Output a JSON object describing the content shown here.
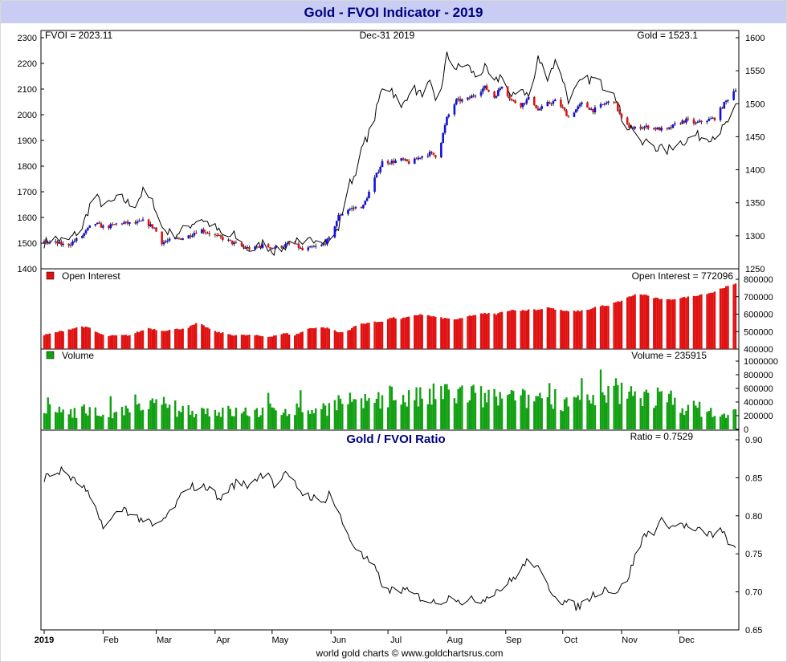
{
  "header": {
    "title": "Gold - FVOI Indicator - 2019"
  },
  "footer": {
    "credit": "world gold charts © www.goldchartsrus.com"
  },
  "colors": {
    "title_band": "#c9cdf3",
    "title_text": "#000080",
    "up_candle": "#1010e0",
    "down_candle": "#e01010",
    "open_interest": "#e01010",
    "volume": "#12a012",
    "line": "#000000"
  },
  "x_axis": {
    "ticks": [
      "2019",
      "Feb",
      "Mar",
      "Apr",
      "May",
      "Jun",
      "Jul",
      "Aug",
      "Sep",
      "Oct",
      "Nov",
      "Dec"
    ],
    "tick_day_index": [
      0,
      31,
      59,
      90,
      120,
      151,
      181,
      212,
      243,
      273,
      304,
      334
    ],
    "days_in_year": 365
  },
  "chart_data": [
    {
      "type": "line",
      "name": "price-panel",
      "labels": {
        "fvoi": "FVOI = 2023.11",
        "date": "Dec-31  2019",
        "gold": "Gold = 1523.1"
      },
      "left_axis": {
        "ticks": [
          "2300",
          "2200",
          "2100",
          "2000",
          "1900",
          "1800",
          "1700",
          "1600",
          "1500",
          "1400"
        ],
        "range": [
          1400,
          2300
        ]
      },
      "right_axis": {
        "ticks": [
          "1600",
          "1550",
          "1500",
          "1450",
          "1400",
          "1350",
          "1300",
          "1250"
        ],
        "range": [
          1250,
          1600
        ]
      },
      "fvoi_series": {
        "day": [
          0,
          5,
          12,
          20,
          26,
          32,
          40,
          47,
          52,
          58,
          62,
          68,
          75,
          82,
          90,
          95,
          100,
          106,
          110,
          115,
          121,
          126,
          131,
          136,
          141,
          146,
          150,
          155,
          160,
          163,
          168,
          173,
          178,
          183,
          188,
          193,
          198,
          203,
          207,
          212,
          217,
          222,
          227,
          232,
          237,
          241,
          246,
          251,
          256,
          260,
          265,
          270,
          276,
          283,
          289,
          295,
          300,
          305,
          310,
          314,
          318,
          323,
          328,
          333,
          338,
          343,
          348,
          353,
          358,
          364
        ],
        "value": [
          1500,
          1520,
          1505,
          1560,
          1690,
          1640,
          1680,
          1640,
          1700,
          1650,
          1560,
          1530,
          1560,
          1600,
          1560,
          1520,
          1530,
          1480,
          1470,
          1500,
          1470,
          1480,
          1520,
          1480,
          1520,
          1520,
          1500,
          1560,
          1720,
          1760,
          1880,
          1960,
          2110,
          2100,
          2020,
          2110,
          2080,
          2120,
          2020,
          2230,
          2180,
          2200,
          2150,
          2180,
          2120,
          2160,
          2060,
          2110,
          2060,
          2220,
          2150,
          2220,
          2060,
          2130,
          2140,
          2110,
          2100,
          1960,
          1950,
          1880,
          1900,
          1870,
          1860,
          1890,
          1900,
          1920,
          1910,
          1920,
          1950,
          2023.11
        ]
      },
      "gold_series": {
        "day": [
          0,
          5,
          12,
          20,
          26,
          32,
          40,
          47,
          52,
          58,
          62,
          68,
          75,
          82,
          90,
          95,
          100,
          106,
          110,
          115,
          121,
          126,
          131,
          136,
          141,
          146,
          150,
          155,
          160,
          163,
          168,
          173,
          178,
          183,
          188,
          193,
          198,
          203,
          207,
          212,
          217,
          222,
          227,
          232,
          237,
          241,
          246,
          251,
          256,
          260,
          265,
          270,
          276,
          283,
          289,
          295,
          300,
          305,
          310,
          314,
          318,
          323,
          328,
          333,
          338,
          343,
          348,
          353,
          358,
          364
        ],
        "value": [
          1290,
          1290,
          1285,
          1300,
          1320,
          1312,
          1320,
          1318,
          1322,
          1312,
          1290,
          1294,
          1298,
          1310,
          1300,
          1295,
          1288,
          1282,
          1280,
          1285,
          1282,
          1285,
          1290,
          1278,
          1282,
          1285,
          1295,
          1330,
          1340,
          1342,
          1345,
          1380,
          1412,
          1412,
          1415,
          1410,
          1420,
          1425,
          1420,
          1478,
          1505,
          1505,
          1515,
          1525,
          1510,
          1528,
          1505,
          1498,
          1510,
          1490,
          1500,
          1505,
          1480,
          1500,
          1490,
          1500,
          1505,
          1470,
          1462,
          1465,
          1465,
          1462,
          1460,
          1470,
          1475,
          1470,
          1475,
          1478,
          1500,
          1523.1
        ]
      }
    },
    {
      "type": "bar",
      "name": "open-interest-panel",
      "legend": "Open Interest",
      "label": "Open Interest = 772096",
      "axis": {
        "ticks": [
          "800000",
          "700000",
          "600000",
          "500000",
          "400000"
        ],
        "range": [
          400000,
          800000
        ]
      },
      "days": [
        0,
        20,
        24,
        27,
        32,
        45,
        55,
        62,
        75,
        81,
        90,
        95,
        100,
        110,
        118,
        122,
        127,
        132,
        140,
        145,
        150,
        155,
        159,
        165,
        170,
        175,
        178,
        183,
        188,
        193,
        198,
        203,
        208,
        212,
        218,
        224,
        229,
        234,
        238,
        243,
        248,
        253,
        256,
        260,
        265,
        270,
        276,
        283,
        288,
        292,
        297,
        300,
        305,
        308,
        312,
        317,
        320,
        323,
        327,
        333,
        340,
        347,
        352,
        357,
        364
      ],
      "values": [
        480000,
        530000,
        520000,
        500000,
        475000,
        480000,
        520000,
        505000,
        520000,
        550000,
        500000,
        490000,
        480000,
        480000,
        470000,
        480000,
        490000,
        480000,
        520000,
        525000,
        520000,
        495000,
        500000,
        540000,
        550000,
        555000,
        560000,
        580000,
        575000,
        585000,
        600000,
        590000,
        580000,
        575000,
        570000,
        590000,
        600000,
        605000,
        600000,
        620000,
        625000,
        620000,
        630000,
        625000,
        640000,
        625000,
        615000,
        620000,
        630000,
        650000,
        645000,
        665000,
        680000,
        700000,
        715000,
        710000,
        695000,
        690000,
        680000,
        690000,
        700000,
        715000,
        725000,
        750000,
        772096
      ]
    },
    {
      "type": "bar",
      "name": "volume-panel",
      "legend": "Volume",
      "label": "Volume = 235915",
      "axis": {
        "ticks": [
          "1000000",
          "800000",
          "600000",
          "400000",
          "200000",
          "0"
        ],
        "range": [
          0,
          1000000
        ]
      },
      "days": [
        0,
        20,
        30,
        40,
        50,
        60,
        70,
        80,
        90,
        100,
        110,
        120,
        130,
        140,
        150,
        155,
        160,
        170,
        180,
        190,
        200,
        210,
        220,
        230,
        240,
        250,
        260,
        270,
        280,
        290,
        300,
        310,
        320,
        330,
        340,
        350,
        357,
        364
      ],
      "values": [
        260000,
        280000,
        230000,
        240000,
        290000,
        360000,
        300000,
        280000,
        270000,
        250000,
        250000,
        280000,
        300000,
        280000,
        330000,
        400000,
        300000,
        380000,
        520000,
        450000,
        450000,
        520000,
        520000,
        470000,
        450000,
        420000,
        480000,
        450000,
        430000,
        380000,
        520000,
        520000,
        480000,
        420000,
        320000,
        270000,
        180000,
        235915
      ]
    },
    {
      "type": "line",
      "name": "ratio-panel",
      "title": "Gold / FVOI Ratio",
      "label": "Ratio = 0.7529",
      "axis": {
        "ticks": [
          "0.90",
          "0.85",
          "0.80",
          "0.75",
          "0.70",
          "0.65"
        ],
        "range": [
          0.65,
          0.9
        ]
      },
      "day": [
        0,
        5,
        10,
        16,
        20,
        25,
        28,
        32,
        37,
        42,
        47,
        52,
        58,
        63,
        68,
        72,
        76,
        82,
        87,
        92,
        97,
        102,
        107,
        112,
        118,
        122,
        126,
        131,
        136,
        141,
        146,
        150,
        154,
        158,
        162,
        168,
        173,
        177,
        181,
        186,
        191,
        196,
        201,
        206,
        211,
        216,
        221,
        226,
        231,
        236,
        241,
        246,
        251,
        256,
        261,
        266,
        271,
        276,
        281,
        286,
        291,
        296,
        301,
        306,
        311,
        316,
        321,
        326,
        331,
        336,
        341,
        346,
        351,
        356,
        361,
        364
      ],
      "value": [
        0.85,
        0.855,
        0.86,
        0.845,
        0.84,
        0.82,
        0.8,
        0.785,
        0.8,
        0.81,
        0.8,
        0.795,
        0.785,
        0.795,
        0.81,
        0.825,
        0.84,
        0.835,
        0.84,
        0.82,
        0.835,
        0.845,
        0.84,
        0.85,
        0.86,
        0.835,
        0.855,
        0.845,
        0.83,
        0.825,
        0.815,
        0.83,
        0.81,
        0.785,
        0.765,
        0.745,
        0.735,
        0.715,
        0.7,
        0.705,
        0.7,
        0.695,
        0.69,
        0.685,
        0.69,
        0.695,
        0.685,
        0.69,
        0.69,
        0.7,
        0.705,
        0.715,
        0.73,
        0.745,
        0.725,
        0.705,
        0.69,
        0.685,
        0.68,
        0.69,
        0.7,
        0.705,
        0.7,
        0.71,
        0.745,
        0.775,
        0.78,
        0.795,
        0.785,
        0.79,
        0.78,
        0.78,
        0.775,
        0.78,
        0.765,
        0.7529
      ]
    }
  ]
}
